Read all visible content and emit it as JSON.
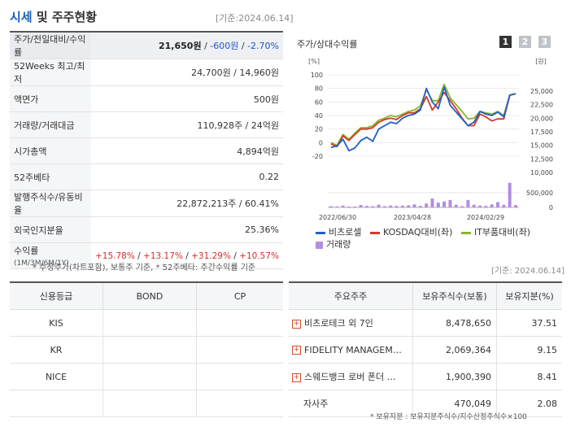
{
  "header": {
    "title_part1": "시세",
    "title_part2": " 및 주주현황",
    "date": "[기준:2024.06.14]"
  },
  "quote": {
    "row0": {
      "label": "주가/전일대비/수익률",
      "price": "21,650원",
      "change": "-600원",
      "rate": "-2.70%"
    },
    "row1": {
      "label": "52Weeks 최고/최저",
      "value": "24,700원 / 14,960원"
    },
    "row2": {
      "label": "액면가",
      "value": "500원"
    },
    "row3": {
      "label": "거래량/거래대금",
      "value": "110,928주 / 24억원"
    },
    "row4": {
      "label": "시가총액",
      "value": "4,894억원"
    },
    "row5": {
      "label": "52주베타",
      "value": "0.22"
    },
    "row6": {
      "label": "발행주식수/유동비율",
      "value": "22,872,213주 / 60.41%"
    },
    "row7": {
      "label": "외국인지분율",
      "value": "25.36%"
    },
    "row8": {
      "label": "수익률",
      "label_small": "(1M/3M/6M/1Y)",
      "r1": "+15.78%",
      "r2": "+13.17%",
      "r3": "+31.29%",
      "r4": "+10.57%"
    }
  },
  "quote_note": "* 수정주가(차트포함), 보통주 기준, * 52주베타: 주간수익률 기준",
  "chart_panel": {
    "title": "주가/상대수익률",
    "tabs": [
      "1",
      "2",
      "3"
    ],
    "left_unit": "[%]",
    "right_unit": "[원]",
    "legend": [
      "비츠로셀",
      "KOSDAQ대비(좌)",
      "IT부품대비(좌)",
      "거래량"
    ],
    "colors": {
      "stock": "#1f5fc9",
      "kosdaq": "#d23a2a",
      "it": "#8ab52a",
      "volume": "#b38de0"
    }
  },
  "chart_data": {
    "type": "line",
    "x_ticks": [
      "2022/06/30",
      "2023/04/28",
      "2024/02/29"
    ],
    "y_left": {
      "min": -20,
      "max": 100,
      "ticks": [
        -20,
        0,
        20,
        40,
        60,
        80,
        100
      ]
    },
    "y_right": {
      "min": 10000,
      "max": 25000,
      "ticks": [
        10000,
        12500,
        15000,
        17500,
        20000,
        22500,
        25000
      ]
    },
    "y_volume": {
      "min": 0,
      "max": 1000000,
      "ticks": [
        0,
        500000
      ]
    },
    "series": [
      {
        "name": "비츠로셀",
        "values": [
          -7,
          -5,
          5,
          -12,
          -8,
          3,
          8,
          2,
          20,
          25,
          30,
          28,
          36,
          40,
          42,
          48,
          80,
          60,
          50,
          82,
          55,
          45,
          35,
          25,
          30,
          46,
          42,
          40,
          45,
          38,
          70,
          72
        ]
      },
      {
        "name": "KOSDAQ대비(좌)",
        "values": [
          -2,
          -6,
          10,
          3,
          12,
          20,
          20,
          22,
          30,
          34,
          36,
          34,
          40,
          44,
          44,
          50,
          68,
          48,
          60,
          74,
          62,
          50,
          36,
          25,
          25,
          42,
          38,
          32,
          35,
          35,
          70,
          72
        ]
      },
      {
        "name": "IT부품대비(좌)",
        "values": [
          0,
          -4,
          12,
          5,
          14,
          22,
          22,
          25,
          33,
          36,
          40,
          38,
          42,
          46,
          48,
          54,
          78,
          62,
          62,
          86,
          66,
          56,
          46,
          35,
          36,
          46,
          44,
          42,
          46,
          40,
          70,
          72
        ]
      },
      {
        "name": "거래량",
        "values": [
          40000,
          30000,
          60000,
          20000,
          30000,
          80000,
          50000,
          40000,
          90000,
          40000,
          60000,
          50000,
          60000,
          70000,
          100000,
          50000,
          130000,
          300000,
          160000,
          200000,
          250000,
          90000,
          40000,
          250000,
          90000,
          60000,
          50000,
          100000,
          180000,
          90000,
          830000,
          80000
        ]
      }
    ]
  },
  "date_mid": "[기준: 2024.06.14]",
  "credit": {
    "headers": [
      "신용등급",
      "BOND",
      "CP"
    ],
    "rows": [
      [
        "KIS",
        "",
        ""
      ],
      [
        "KR",
        "",
        ""
      ],
      [
        "NICE",
        "",
        ""
      ],
      [
        "",
        "",
        ""
      ]
    ]
  },
  "holders": {
    "headers": [
      "주요주주",
      "보유주식수(보통)",
      "보유지분(%)"
    ],
    "rows": [
      {
        "name": "비츠로테크 외 7인",
        "shares": "8,478,650",
        "pct": "37.51",
        "expand": true
      },
      {
        "name": "FIDELITY MANAGEM…",
        "shares": "2,069,364",
        "pct": "9.15",
        "expand": true
      },
      {
        "name": "스웨드뱅크 로버 폰더 …",
        "shares": "1,900,390",
        "pct": "8.41",
        "expand": true
      },
      {
        "name": "자사주",
        "shares": "470,049",
        "pct": "2.08",
        "expand": false
      }
    ]
  },
  "holders_note": "* 보유지분 : 보유지분주식수/지수산정주식수×100"
}
